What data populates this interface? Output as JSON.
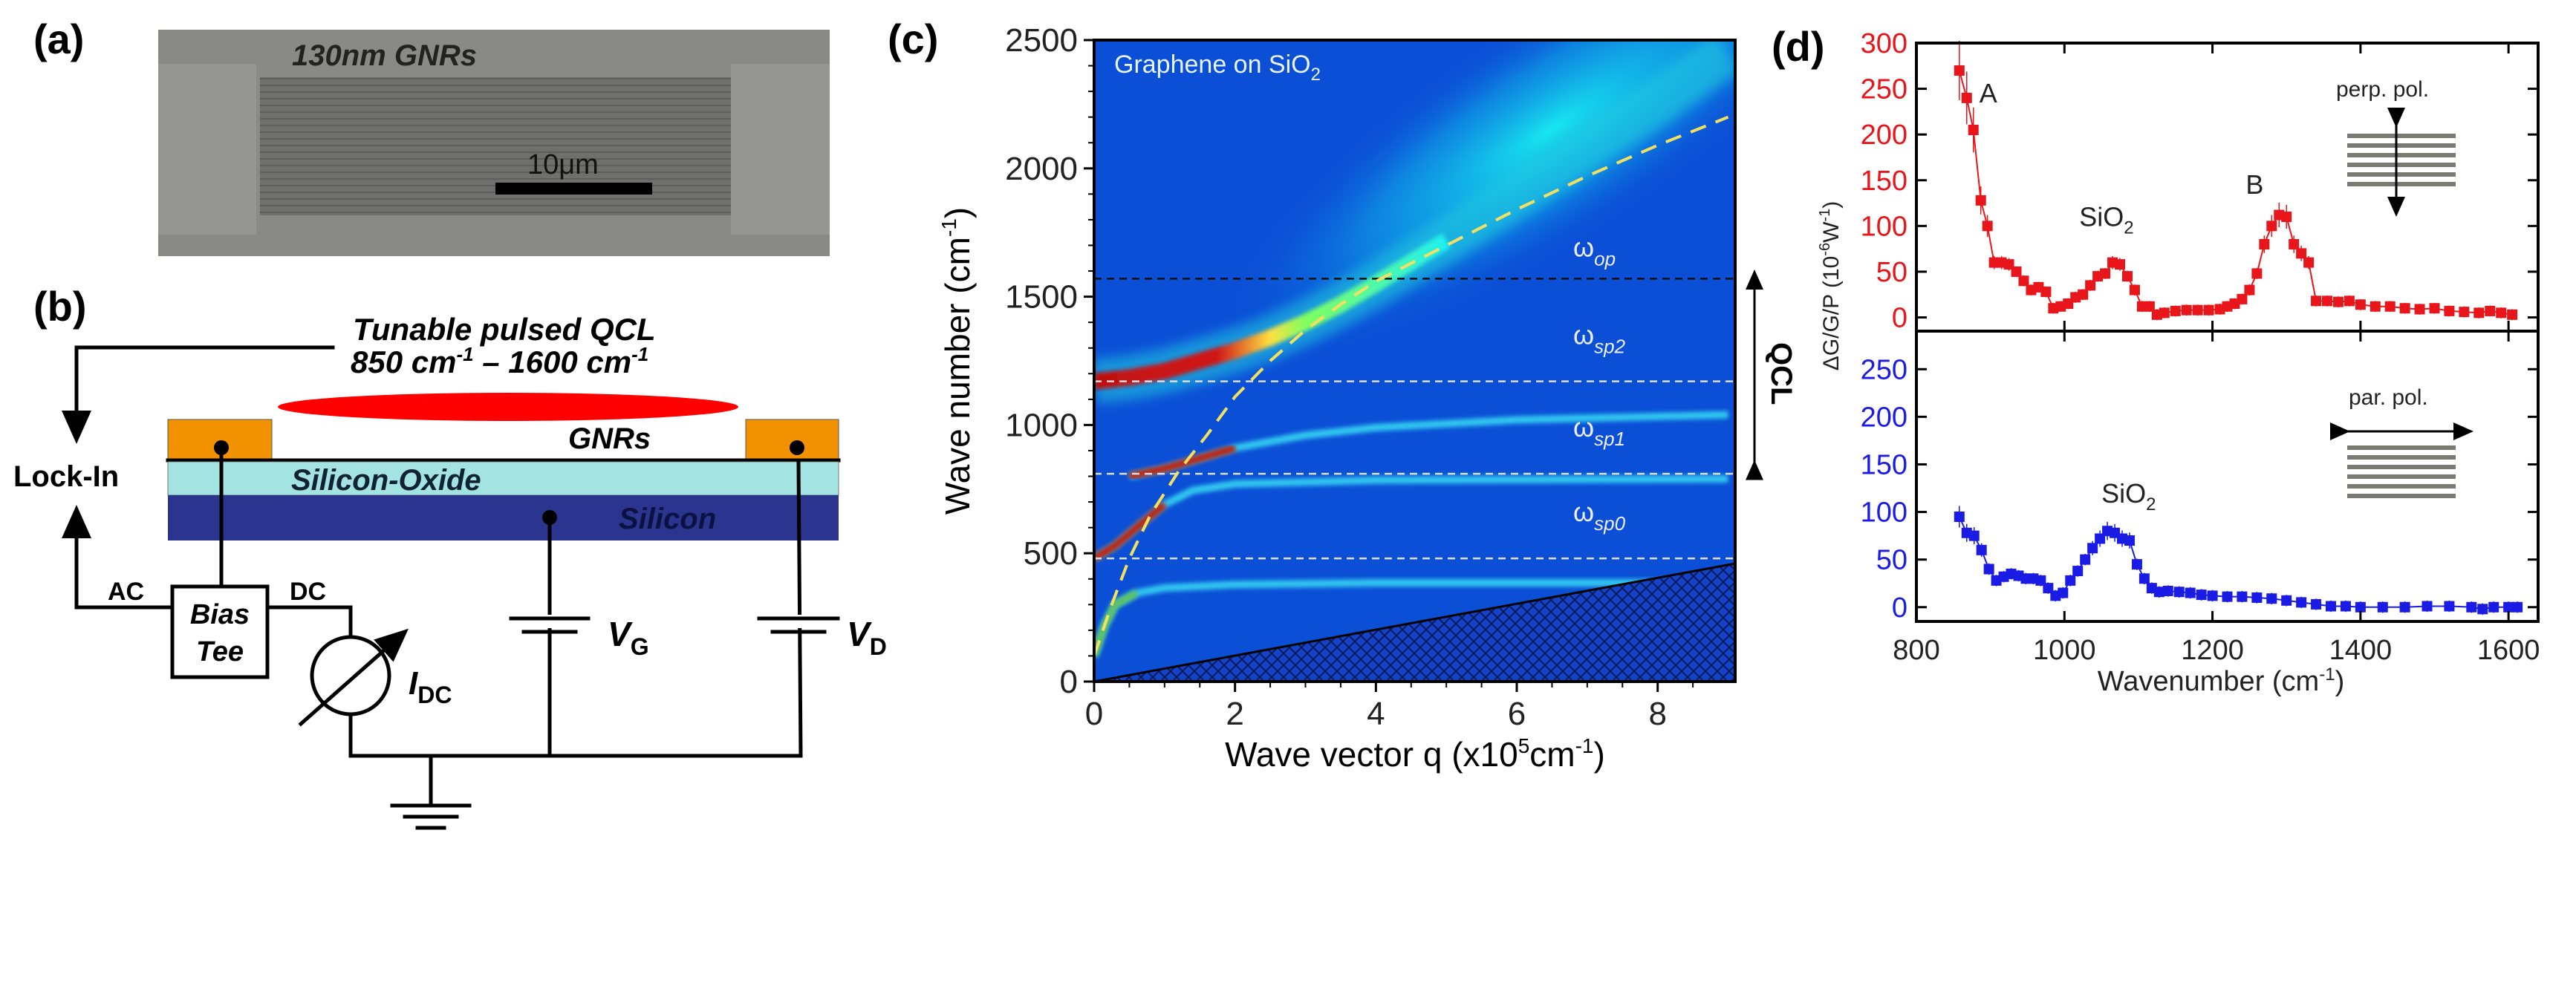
{
  "panels": {
    "a": {
      "label": "(a)",
      "caption": "130nm GNRs",
      "scalebar": "10μm"
    },
    "b": {
      "label": "(b)",
      "laser_line1": "Tunable pulsed QCL",
      "laser_line2_a": "850 cm",
      "laser_line2_sup1": "-1",
      "laser_line2_b": " – 1600 cm",
      "laser_line2_sup2": "-1",
      "gnrs": "GNRs",
      "oxide": "Silicon-Oxide",
      "silicon": "Silicon",
      "lockin": "Lock-In",
      "ac": "AC",
      "dc": "DC",
      "bias_tee_1": "Bias",
      "bias_tee_2": "Tee",
      "idc": "I",
      "idc_sub": "DC",
      "vg": "V",
      "vg_sub": "G",
      "vd": "V",
      "vd_sub": "D"
    },
    "c": {
      "label": "(c)"
    },
    "d": {
      "label": "(d)"
    }
  },
  "colors": {
    "red": "#e8161b",
    "blue": "#1b1be6",
    "pad": "#f39200",
    "oxide": "#a3e3e1",
    "silicon": "#2b3590",
    "laser": "#ff0000"
  },
  "chart_data": [
    {
      "id": "c",
      "type": "heatmap",
      "title": "Graphene on SiO",
      "title_sub": "2",
      "xlabel": "Wave vector q (x10",
      "xlabel_sup": "5",
      "xlabel_mid": "cm",
      "xlabel_sup2": "-1",
      "xlabel_end": ")",
      "ylabel": "Wave number (cm",
      "ylabel_sup": "-1",
      "ylabel_end": ")",
      "xlim": [
        0,
        9.1
      ],
      "ylim": [
        0,
        2500
      ],
      "xticks": [
        0,
        2,
        4,
        6,
        8
      ],
      "yticks": [
        0,
        500,
        1000,
        1500,
        2000,
        2500
      ],
      "hlines": [
        {
          "name": "ω",
          "sub": "op",
          "value": 1570,
          "color": "#111111"
        },
        {
          "name": "ω",
          "sub": "sp2",
          "value": 1170,
          "color": "#dddddd"
        },
        {
          "name": "ω",
          "sub": "sp1",
          "value": 810,
          "color": "#dddddd"
        },
        {
          "name": "ω",
          "sub": "sp0",
          "value": 480,
          "color": "#dddddd"
        }
      ],
      "light_line": [
        [
          0,
          100
        ],
        [
          0.25,
          300
        ],
        [
          0.5,
          480
        ],
        [
          0.8,
          650
        ],
        [
          1.2,
          820
        ],
        [
          1.6,
          960
        ],
        [
          2,
          1110
        ],
        [
          2.5,
          1250
        ],
        [
          3,
          1370
        ],
        [
          3.5,
          1470
        ],
        [
          4,
          1560
        ],
        [
          5,
          1700
        ],
        [
          6,
          1840
        ],
        [
          7,
          1970
        ],
        [
          8,
          2090
        ],
        [
          9,
          2200
        ]
      ],
      "branches": [
        {
          "name": "upper-plasmon-branch",
          "points": [
            [
              0,
              1170
            ],
            [
              0.5,
              1185
            ],
            [
              1,
              1210
            ],
            [
              1.5,
              1250
            ],
            [
              2,
              1290
            ],
            [
              2.5,
              1340
            ],
            [
              3,
              1400
            ],
            [
              3.5,
              1470
            ],
            [
              4,
              1550
            ],
            [
              5,
              1720
            ],
            [
              6,
              1900
            ],
            [
              7,
              2080
            ],
            [
              8,
              2260
            ],
            [
              9,
              2450
            ]
          ]
        },
        {
          "name": "sp1-branch",
          "points": [
            [
              0.5,
              800
            ],
            [
              1,
              830
            ],
            [
              1.5,
              870
            ],
            [
              2,
              910
            ],
            [
              3,
              960
            ],
            [
              4,
              990
            ],
            [
              6,
              1020
            ],
            [
              9,
              1040
            ]
          ]
        },
        {
          "name": "sp0-branch",
          "points": [
            [
              0,
              480
            ],
            [
              0.3,
              530
            ],
            [
              0.6,
              600
            ],
            [
              1,
              690
            ],
            [
              1.4,
              745
            ],
            [
              2,
              770
            ],
            [
              4,
              785
            ],
            [
              9,
              790
            ]
          ]
        },
        {
          "name": "lowest-branch",
          "points": [
            [
              0,
              100
            ],
            [
              0.15,
              220
            ],
            [
              0.3,
              300
            ],
            [
              0.6,
              345
            ],
            [
              1,
              365
            ],
            [
              2,
              378
            ],
            [
              4,
              385
            ],
            [
              9,
              385
            ]
          ]
        }
      ],
      "landau_damping_edge": [
        [
          0,
          0
        ],
        [
          9.1,
          460
        ]
      ],
      "annotation": {
        "text": "QCL",
        "range": [
          800,
          1600
        ]
      }
    },
    {
      "id": "d",
      "type": "scatter",
      "xlabel": "Wavenumber (cm",
      "xlabel_sup": "-1",
      "xlabel_end": ")",
      "ylabel": "ΔG/G/P (10",
      "ylabel_sup": "-6",
      "ylabel_mid": "W",
      "ylabel_sup2": "-1",
      "ylabel_end": ")",
      "xlim": [
        800,
        1640
      ],
      "xticks": [
        800,
        1000,
        1200,
        1400,
        1600
      ],
      "series": [
        {
          "name": "perp. pol.",
          "color": "#e8161b",
          "ylim": [
            -15,
            300
          ],
          "yticks": [
            0,
            50,
            100,
            150,
            200,
            250,
            300
          ],
          "annotations": [
            {
              "text": "A",
              "x": 885,
              "y": 235
            },
            {
              "text": "SiO",
              "sub": "2",
              "x": 1020,
              "y": 100
            },
            {
              "text": "B",
              "x": 1245,
              "y": 135
            }
          ],
          "points": [
            [
              858,
              270
            ],
            [
              868,
              240
            ],
            [
              877,
              205
            ],
            [
              887,
              128
            ],
            [
              896,
              100
            ],
            [
              905,
              60
            ],
            [
              915,
              60
            ],
            [
              925,
              58
            ],
            [
              935,
              50
            ],
            [
              945,
              40
            ],
            [
              955,
              30
            ],
            [
              965,
              33
            ],
            [
              975,
              28
            ],
            [
              985,
              10
            ],
            [
              995,
              12
            ],
            [
              1005,
              15
            ],
            [
              1015,
              22
            ],
            [
              1025,
              25
            ],
            [
              1035,
              35
            ],
            [
              1045,
              45
            ],
            [
              1055,
              48
            ],
            [
              1065,
              60
            ],
            [
              1075,
              58
            ],
            [
              1085,
              45
            ],
            [
              1095,
              30
            ],
            [
              1105,
              12
            ],
            [
              1115,
              12
            ],
            [
              1125,
              3
            ],
            [
              1135,
              5
            ],
            [
              1150,
              7
            ],
            [
              1165,
              8
            ],
            [
              1180,
              8
            ],
            [
              1195,
              8
            ],
            [
              1210,
              9
            ],
            [
              1220,
              12
            ],
            [
              1230,
              15
            ],
            [
              1240,
              20
            ],
            [
              1250,
              30
            ],
            [
              1260,
              48
            ],
            [
              1270,
              80
            ],
            [
              1280,
              100
            ],
            [
              1290,
              112
            ],
            [
              1300,
              110
            ],
            [
              1310,
              80
            ],
            [
              1320,
              70
            ],
            [
              1330,
              60
            ],
            [
              1340,
              18
            ],
            [
              1355,
              18
            ],
            [
              1370,
              17
            ],
            [
              1385,
              18
            ],
            [
              1400,
              14
            ],
            [
              1420,
              12
            ],
            [
              1440,
              12
            ],
            [
              1460,
              10
            ],
            [
              1480,
              9
            ],
            [
              1500,
              10
            ],
            [
              1520,
              7
            ],
            [
              1540,
              6
            ],
            [
              1560,
              5
            ],
            [
              1575,
              7
            ],
            [
              1590,
              5
            ],
            [
              1605,
              3
            ]
          ]
        },
        {
          "name": "par. pol.",
          "color": "#1b1be6",
          "ylim": [
            -15,
            290
          ],
          "yticks": [
            0,
            50,
            100,
            150,
            200,
            250
          ],
          "annotations": [
            {
              "text": "SiO",
              "sub": "2",
              "x": 1050,
              "y": 110
            }
          ],
          "points": [
            [
              858,
              95
            ],
            [
              868,
              78
            ],
            [
              878,
              75
            ],
            [
              888,
              60
            ],
            [
              898,
              40
            ],
            [
              908,
              28
            ],
            [
              918,
              32
            ],
            [
              928,
              35
            ],
            [
              938,
              33
            ],
            [
              948,
              30
            ],
            [
              958,
              30
            ],
            [
              968,
              28
            ],
            [
              978,
              20
            ],
            [
              988,
              12
            ],
            [
              998,
              15
            ],
            [
              1008,
              28
            ],
            [
              1018,
              38
            ],
            [
              1028,
              50
            ],
            [
              1038,
              62
            ],
            [
              1048,
              72
            ],
            [
              1058,
              80
            ],
            [
              1068,
              78
            ],
            [
              1078,
              72
            ],
            [
              1088,
              70
            ],
            [
              1098,
              45
            ],
            [
              1108,
              30
            ],
            [
              1118,
              20
            ],
            [
              1128,
              16
            ],
            [
              1140,
              17
            ],
            [
              1155,
              16
            ],
            [
              1170,
              15
            ],
            [
              1185,
              13
            ],
            [
              1200,
              12
            ],
            [
              1220,
              11
            ],
            [
              1240,
              11
            ],
            [
              1260,
              10
            ],
            [
              1280,
              9
            ],
            [
              1300,
              7
            ],
            [
              1320,
              5
            ],
            [
              1340,
              3
            ],
            [
              1360,
              1
            ],
            [
              1380,
              1
            ],
            [
              1400,
              0
            ],
            [
              1430,
              0
            ],
            [
              1460,
              0
            ],
            [
              1490,
              1
            ],
            [
              1520,
              1
            ],
            [
              1550,
              0
            ],
            [
              1565,
              -2
            ],
            [
              1580,
              0
            ],
            [
              1600,
              0
            ],
            [
              1612,
              0
            ]
          ]
        }
      ]
    }
  ]
}
